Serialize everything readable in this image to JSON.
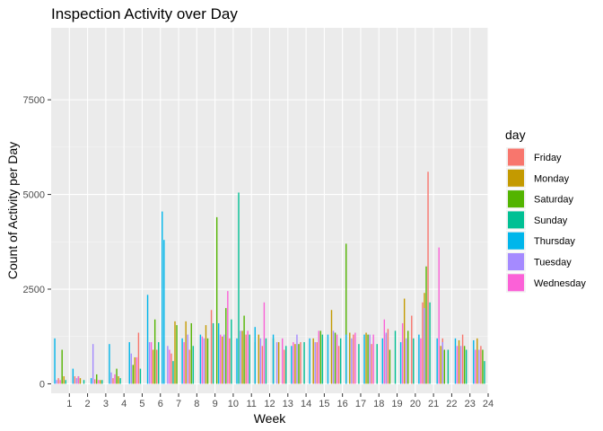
{
  "chart_data": {
    "type": "bar",
    "title": "Inspection Activity over Day",
    "xlabel": "Week",
    "ylabel": "Count of Activity per Day",
    "x_ticks": [
      "1",
      "2",
      "3",
      "4",
      "5",
      "6",
      "7",
      "8",
      "9",
      "10",
      "11",
      "12",
      "13",
      "14",
      "15",
      "16",
      "17",
      "18",
      "19",
      "20",
      "21",
      "22",
      "23",
      "24"
    ],
    "y_ticks": [
      0,
      2500,
      5000,
      7500
    ],
    "y_tick_labels": [
      "0",
      "2500",
      "5000",
      "7500"
    ],
    "ylim": [
      -250,
      9400
    ],
    "xlim": [
      0,
      24
    ],
    "grid": true,
    "legend": {
      "title": "day",
      "position": "right",
      "entries": [
        {
          "name": "Friday",
          "color": "#F8766D"
        },
        {
          "name": "Monday",
          "color": "#C49A00"
        },
        {
          "name": "Saturday",
          "color": "#53B400"
        },
        {
          "name": "Sunday",
          "color": "#00C094"
        },
        {
          "name": "Thursday",
          "color": "#00B6EB"
        },
        {
          "name": "Tuesday",
          "color": "#A58AFF"
        },
        {
          "name": "Wednesday",
          "color": "#FB61D7"
        }
      ]
    },
    "series": [
      {
        "name": "Friday",
        "values": [
          [
            0.4,
            150
          ],
          [
            1.3,
            200
          ],
          [
            2.4,
            120
          ],
          [
            3.4,
            150
          ],
          [
            4.8,
            1350
          ],
          [
            5.8,
            900
          ],
          [
            6.6,
            800
          ],
          [
            7.6,
            900
          ],
          [
            8.8,
            1950
          ],
          [
            9.8,
            1200
          ],
          [
            10.7,
            1300
          ],
          [
            11.6,
            1000
          ],
          [
            12.8,
            900
          ],
          [
            13.7,
            1100
          ],
          [
            14.6,
            1100
          ],
          [
            15.8,
            1000
          ],
          [
            16.6,
            1300
          ],
          [
            17.6,
            1050
          ],
          [
            18.5,
            1450
          ],
          [
            19.8,
            1800
          ],
          [
            20.4,
            2150
          ],
          [
            20.7,
            5600
          ],
          [
            21.5,
            1200
          ],
          [
            22.6,
            1300
          ],
          [
            23.6,
            1000
          ]
        ]
      },
      {
        "name": "Monday",
        "values": [
          [
            0.7,
            200
          ],
          [
            1.6,
            150
          ],
          [
            2.7,
            100
          ],
          [
            3.7,
            200
          ],
          [
            4.6,
            700
          ],
          [
            5.6,
            900
          ],
          [
            6.8,
            1650
          ],
          [
            7.4,
            1650
          ],
          [
            8.5,
            1550
          ],
          [
            9.4,
            1250
          ],
          [
            10.5,
            1400
          ],
          [
            11.4,
            1300
          ],
          [
            12.5,
            1100
          ],
          [
            13.4,
            1050
          ],
          [
            14.4,
            1200
          ],
          [
            15.4,
            1950
          ],
          [
            16.4,
            1350
          ],
          [
            17.3,
            1350
          ],
          [
            18.4,
            1300
          ],
          [
            19.4,
            2250
          ],
          [
            20.5,
            2400
          ],
          [
            21.4,
            1000
          ],
          [
            22.4,
            1150
          ],
          [
            23.4,
            1200
          ]
        ]
      },
      {
        "name": "Saturday",
        "values": [
          [
            0.6,
            900
          ],
          [
            1.5,
            200
          ],
          [
            2.5,
            250
          ],
          [
            3.6,
            400
          ],
          [
            4.5,
            500
          ],
          [
            5.7,
            1700
          ],
          [
            6.9,
            1550
          ],
          [
            7.7,
            1600
          ],
          [
            8.6,
            1200
          ],
          [
            9.1,
            4400
          ],
          [
            9.6,
            2000
          ],
          [
            10.6,
            1800
          ],
          [
            11.2,
            1100
          ],
          [
            12.2,
            1200
          ],
          [
            13.6,
            1050
          ],
          [
            14.8,
            1400
          ],
          [
            15.6,
            1350
          ],
          [
            16.2,
            3700
          ],
          [
            17.4,
            1300
          ],
          [
            18.6,
            900
          ],
          [
            19.6,
            1400
          ],
          [
            20.6,
            3100
          ],
          [
            21.6,
            900
          ],
          [
            22.7,
            1000
          ],
          [
            23.7,
            900
          ]
        ]
      },
      {
        "name": "Sunday",
        "values": [
          [
            0.8,
            100
          ],
          [
            1.8,
            100
          ],
          [
            2.8,
            100
          ],
          [
            3.8,
            150
          ],
          [
            4.9,
            400
          ],
          [
            5.9,
            1100
          ],
          [
            6.7,
            600
          ],
          [
            7.8,
            1000
          ],
          [
            8.9,
            1600
          ],
          [
            9.9,
            1700
          ],
          [
            10.3,
            5050
          ],
          [
            10.9,
            1300
          ],
          [
            11.8,
            1200
          ],
          [
            12.9,
            1000
          ],
          [
            13.9,
            1100
          ],
          [
            14.9,
            1300
          ],
          [
            15.9,
            1200
          ],
          [
            16.9,
            1050
          ],
          [
            17.9,
            1050
          ],
          [
            18.9,
            1400
          ],
          [
            19.9,
            1200
          ],
          [
            20.8,
            2150
          ],
          [
            21.8,
            900
          ],
          [
            22.8,
            900
          ],
          [
            23.8,
            600
          ]
        ]
      },
      {
        "name": "Thursday",
        "values": [
          [
            0.2,
            1200
          ],
          [
            1.2,
            400
          ],
          [
            2.2,
            150
          ],
          [
            3.2,
            1050
          ],
          [
            4.3,
            1100
          ],
          [
            5.3,
            2350
          ],
          [
            6.1,
            4550
          ],
          [
            6.2,
            3800
          ],
          [
            7.2,
            1200
          ],
          [
            8.2,
            1300
          ],
          [
            9.2,
            1600
          ],
          [
            10.2,
            1200
          ],
          [
            11.2,
            1500
          ],
          [
            12.2,
            1300
          ],
          [
            13.2,
            1000
          ],
          [
            14.2,
            1200
          ],
          [
            15.2,
            1300
          ],
          [
            16.2,
            1300
          ],
          [
            17.2,
            1300
          ],
          [
            18.2,
            1200
          ],
          [
            19.2,
            1100
          ],
          [
            20.2,
            1300
          ],
          [
            21.2,
            1200
          ],
          [
            22.2,
            1200
          ],
          [
            23.2,
            1150
          ]
        ]
      },
      {
        "name": "Tuesday",
        "values": [
          [
            0.3,
            100
          ],
          [
            1.4,
            150
          ],
          [
            2.3,
            1050
          ],
          [
            3.3,
            300
          ],
          [
            4.4,
            800
          ],
          [
            5.4,
            1100
          ],
          [
            6.4,
            1000
          ],
          [
            7.5,
            1300
          ],
          [
            8.4,
            1200
          ],
          [
            9.5,
            1300
          ],
          [
            10.4,
            1400
          ],
          [
            11.5,
            1200
          ],
          [
            12.4,
            1100
          ],
          [
            13.5,
            1300
          ],
          [
            14.5,
            1100
          ],
          [
            15.5,
            1400
          ],
          [
            16.5,
            1200
          ],
          [
            17.5,
            1300
          ],
          [
            18.4,
            1350
          ],
          [
            19.5,
            1200
          ],
          [
            20.5,
            2000
          ],
          [
            21.5,
            1100
          ],
          [
            22.5,
            1000
          ],
          [
            23.5,
            900
          ]
        ]
      },
      {
        "name": "Wednesday",
        "values": [
          [
            0.5,
            100
          ],
          [
            1.5,
            200
          ],
          [
            2.6,
            100
          ],
          [
            3.5,
            250
          ],
          [
            4.7,
            700
          ],
          [
            5.5,
            1100
          ],
          [
            6.5,
            900
          ],
          [
            7.3,
            1100
          ],
          [
            8.3,
            1250
          ],
          [
            9.3,
            1300
          ],
          [
            9.7,
            2450
          ],
          [
            10.8,
            1400
          ],
          [
            11.7,
            2150
          ],
          [
            12.7,
            1200
          ],
          [
            13.3,
            1100
          ],
          [
            14.7,
            1400
          ],
          [
            15.7,
            1300
          ],
          [
            16.7,
            1350
          ],
          [
            17.7,
            1300
          ],
          [
            18.3,
            1700
          ],
          [
            19.3,
            1600
          ],
          [
            20.3,
            1200
          ],
          [
            21.3,
            3600
          ],
          [
            22.3,
            1000
          ],
          [
            23.3,
            900
          ]
        ]
      }
    ]
  }
}
